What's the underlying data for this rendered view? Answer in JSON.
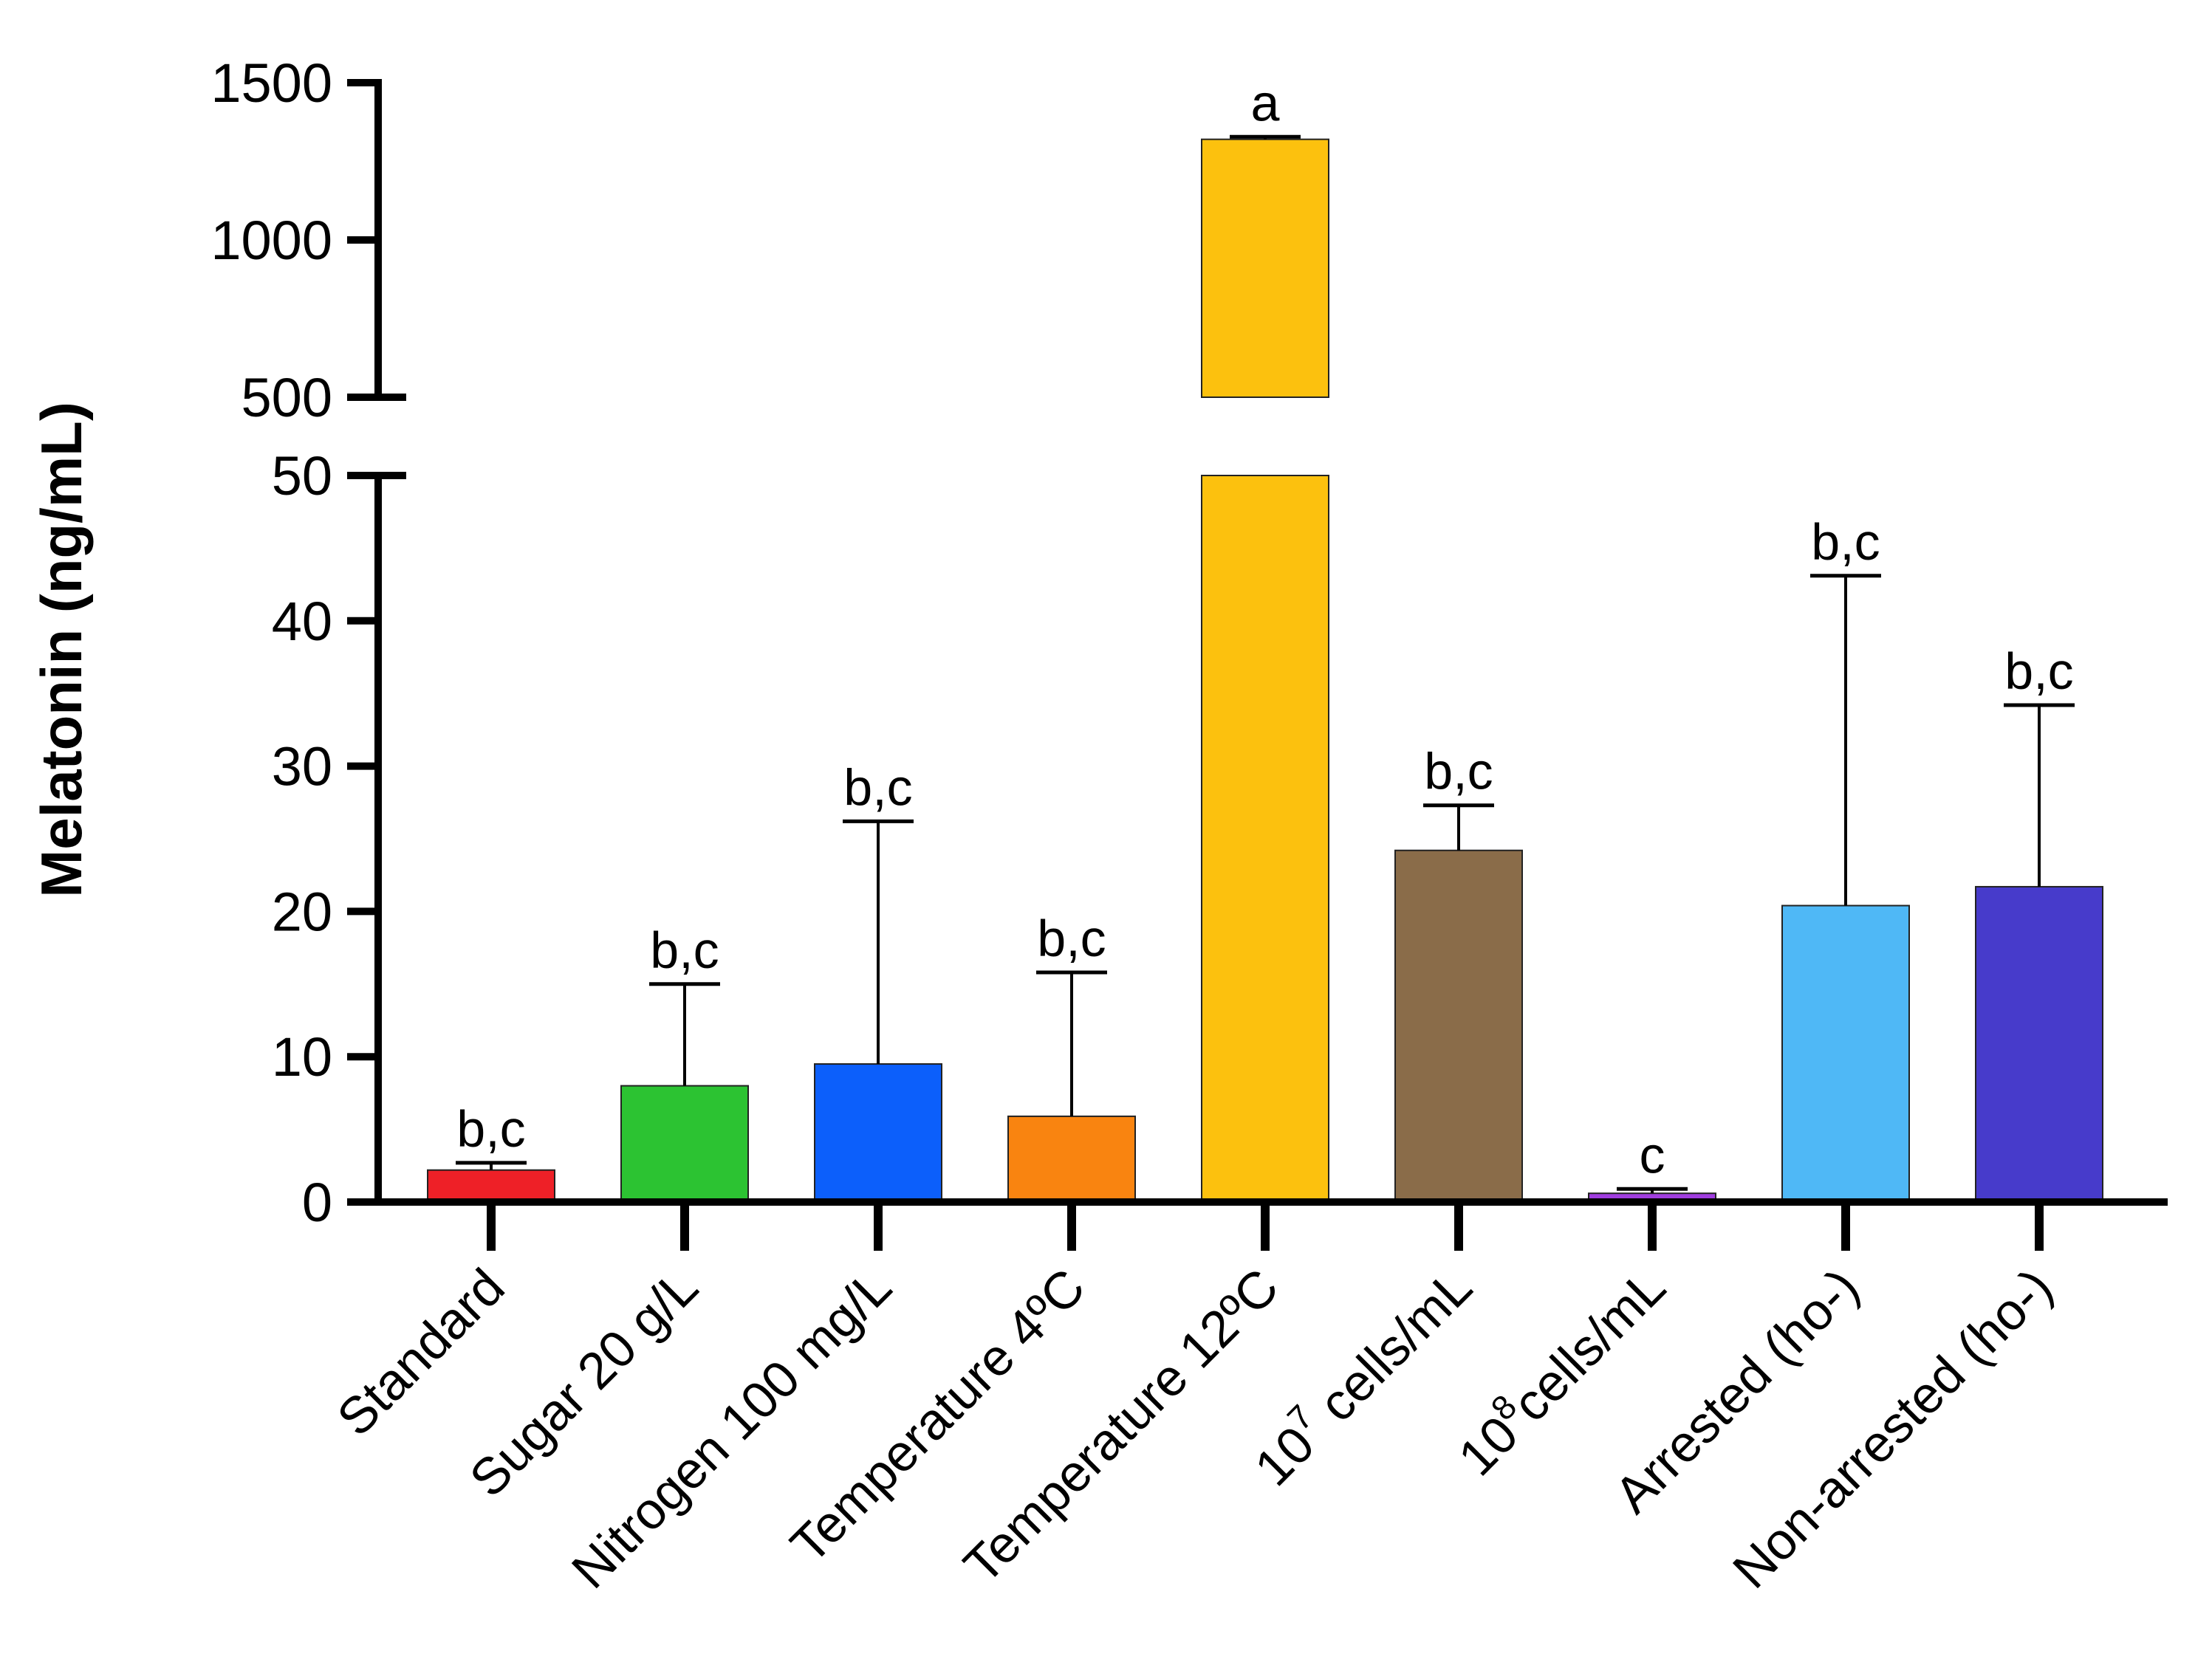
{
  "chart_data": {
    "type": "bar",
    "title": "",
    "xlabel": "",
    "ylabel": "Melatonin (ng/mL)",
    "broken_axis": {
      "lower_range": [
        0,
        50
      ],
      "upper_range": [
        500,
        1500
      ]
    },
    "lower_ticks": [
      "0",
      "10",
      "20",
      "30",
      "40",
      "50"
    ],
    "upper_ticks": [
      "500",
      "1000",
      "1500"
    ],
    "categories": [
      {
        "label": "Standard",
        "sup": "",
        "tail": ""
      },
      {
        "label": "Sugar 20 g/L",
        "sup": "",
        "tail": ""
      },
      {
        "label": "Nitrogen 100 mg/L",
        "sup": "",
        "tail": ""
      },
      {
        "label": "Temperature 4ºC",
        "sup": "",
        "tail": ""
      },
      {
        "label": "Temperature 12ºC",
        "sup": "",
        "tail": ""
      },
      {
        "label": "10",
        "sup": "7",
        "tail": " cells/mL"
      },
      {
        "label": "10",
        "sup": "8",
        "tail": "cells/mL"
      },
      {
        "label": "Arrested (ho-)",
        "sup": "",
        "tail": ""
      },
      {
        "label": "Non-arrested (ho-)",
        "sup": "",
        "tail": ""
      }
    ],
    "values": [
      2.2,
      8.0,
      9.5,
      5.9,
      1320,
      24.2,
      0.6,
      20.4,
      21.7
    ],
    "errors": [
      0.5,
      7.0,
      16.7,
      9.9,
      8,
      3.1,
      0.3,
      22.7,
      12.5
    ],
    "significance": [
      "b,c",
      "b,c",
      "b,c",
      "b,c",
      "a",
      "b,c",
      "c",
      "b,c",
      "b,c"
    ],
    "colors": [
      "#ee2027",
      "#2cc332",
      "#0c5ffb",
      "#f98410",
      "#fcc10e",
      "#8a6c49",
      "#a13ee0",
      "#4fb8f6",
      "#473bcb"
    ]
  }
}
